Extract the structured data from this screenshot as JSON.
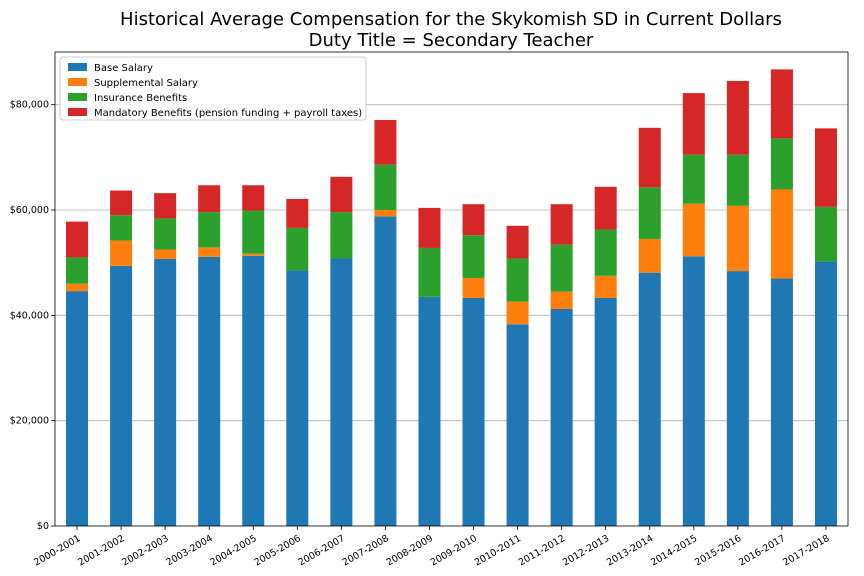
{
  "chart_data": {
    "type": "bar",
    "stacked": true,
    "title": "Historical Average Compensation for the Skykomish SD in Current Dollars",
    "subtitle": "Duty Title = Secondary Teacher",
    "xlabel": "",
    "ylabel": "",
    "ylim": [
      0,
      90000
    ],
    "yticks": [
      0,
      20000,
      40000,
      60000,
      80000
    ],
    "ytick_labels": [
      "$0",
      "$20,000",
      "$40,000",
      "$60,000",
      "$80,000"
    ],
    "grid": "y",
    "legend_position": "top-left",
    "categories": [
      "2000-2001",
      "2001-2002",
      "2002-2003",
      "2003-2004",
      "2004-2005",
      "2005-2006",
      "2006-2007",
      "2007-2008",
      "2008-2009",
      "2009-2010",
      "2010-2011",
      "2011-2012",
      "2012-2013",
      "2013-2014",
      "2014-2015",
      "2015-2016",
      "2016-2017",
      "2017-2018"
    ],
    "series": [
      {
        "name": "Base Salary",
        "color": "#1f77b4",
        "values": [
          44600,
          49400,
          50700,
          51100,
          51300,
          48500,
          50800,
          58800,
          43500,
          43300,
          38300,
          41200,
          43300,
          48100,
          51200,
          48400,
          47000,
          50200
        ]
      },
      {
        "name": "Supplemental Salary",
        "color": "#ff7f0e",
        "values": [
          1400,
          4800,
          1800,
          1800,
          400,
          0,
          0,
          1200,
          0,
          3800,
          4300,
          3300,
          4200,
          6400,
          10000,
          12400,
          16900,
          0
        ]
      },
      {
        "name": "Insurance Benefits",
        "color": "#2ca02c",
        "values": [
          5000,
          4800,
          5900,
          6700,
          8200,
          8100,
          8800,
          8600,
          9300,
          8100,
          8200,
          8900,
          8800,
          9800,
          9300,
          9700,
          9700,
          10400
        ]
      },
      {
        "name": "Mandatory Benefits (pension funding + payroll taxes)",
        "color": "#d62728",
        "values": [
          6800,
          4700,
          4800,
          5100,
          4800,
          5500,
          6700,
          8500,
          7600,
          5900,
          6200,
          7700,
          8100,
          11300,
          11700,
          14000,
          13100,
          14900
        ]
      }
    ]
  }
}
